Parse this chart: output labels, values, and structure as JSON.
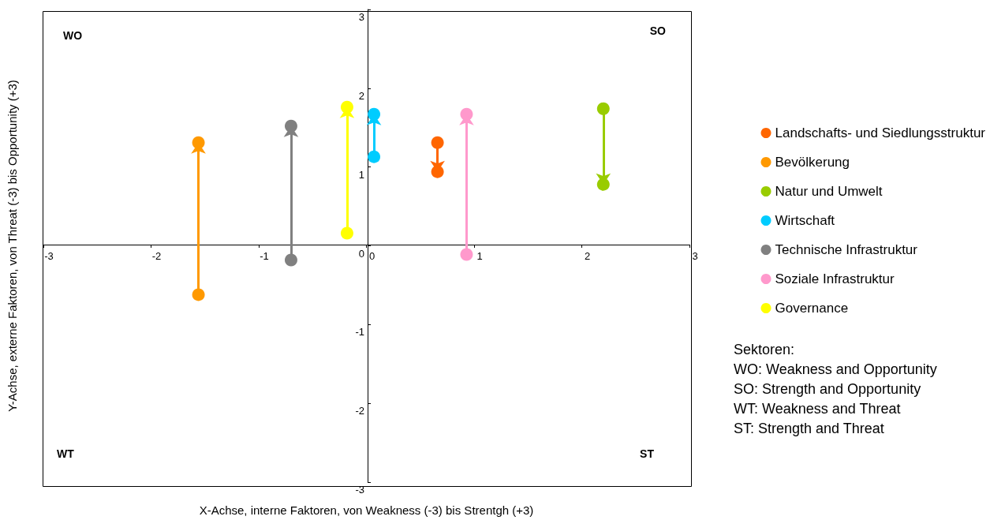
{
  "chart_data": {
    "type": "scatter",
    "xlabel": "X-Achse, interne Faktoren, von Weakness (-3) bis Strentgh (+3)",
    "ylabel": "Y-Achse, externe Faktoren, von Threat (-3) bis Opportunity (+3)",
    "xlim": [
      -3,
      3
    ],
    "xticks": [
      -3,
      -2,
      -1,
      0,
      1,
      2,
      3
    ],
    "ylim": [
      -3,
      3
    ],
    "yticks": [
      -3,
      -2,
      -1,
      0,
      1,
      2,
      3
    ],
    "grid": false,
    "legend": "right",
    "marker": "circle",
    "series": [
      {
        "name": "Landschafts- und Siedlungsstruktur",
        "color": "#ff6600",
        "x": [
          0.66,
          0.66
        ],
        "values": [
          1.31,
          0.94
        ]
      },
      {
        "name": "Bevölkerung",
        "color": "#ff9900",
        "x": [
          -1.56,
          -1.56
        ],
        "values": [
          -0.62,
          1.31
        ]
      },
      {
        "name": "Natur und Umwelt",
        "color": "#99cc00",
        "x": [
          2.2,
          2.2
        ],
        "values": [
          1.74,
          0.78
        ]
      },
      {
        "name": "Wirtschaft",
        "color": "#00ccff",
        "x": [
          0.07,
          0.07
        ],
        "values": [
          1.13,
          1.67
        ]
      },
      {
        "name": "Technische Infrastruktur",
        "color": "#808080",
        "x": [
          -0.7,
          -0.7
        ],
        "values": [
          -0.18,
          1.52
        ]
      },
      {
        "name": "Soziale Infrastruktur",
        "color": "#ff99cc",
        "x": [
          0.93,
          0.93
        ],
        "values": [
          -0.11,
          1.67
        ]
      },
      {
        "name": "Governance",
        "color": "#ffff00",
        "x": [
          -0.18,
          -0.18
        ],
        "values": [
          0.16,
          1.76
        ]
      }
    ],
    "annotations": [
      "WO",
      "SO",
      "WT",
      "ST",
      "Sektoren:\nWO: Weakness and Opportunity\nSO: Strength and Opportunity\nWT: Weakness and Threat\nST: Strength and Threat"
    ]
  }
}
